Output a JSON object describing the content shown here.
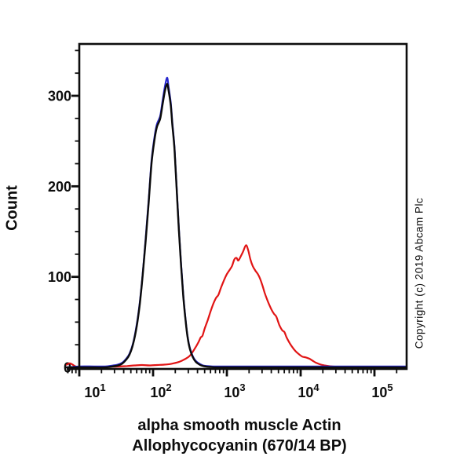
{
  "figure": {
    "ylabel": "Count",
    "xlabel_line1": "alpha smooth muscle Actin",
    "xlabel_line2": "Allophycocyanin (670/14 BP)",
    "copyright": "Copyright (c) 2019 Abcam Plc",
    "ink_color": "#0d0d0d",
    "background_color": "#ffffff"
  },
  "chart_data": {
    "type": "line",
    "subtype": "flow-cytometry-histogram-overlay",
    "title": "",
    "xlabel": "alpha smooth muscle Actin Allophycocyanin (670/14 BP)",
    "ylabel": "Count",
    "x_scale": "log10",
    "xlim_log10": [
      0.83,
      5.436
    ],
    "ylim": [
      0,
      357
    ],
    "grid": false,
    "legend": "none",
    "x_major_ticks": [
      10,
      100,
      1000,
      10000,
      100000
    ],
    "x_tick_labels": [
      {
        "base": "10",
        "exp": "1"
      },
      {
        "base": "10",
        "exp": "2"
      },
      {
        "base": "10",
        "exp": "3"
      },
      {
        "base": "10",
        "exp": "4"
      },
      {
        "base": "10",
        "exp": "5"
      }
    ],
    "x_minor_ticks_per_decade": [
      2,
      3,
      4,
      5,
      6,
      7,
      8,
      9
    ],
    "y_major_ticks": [
      0,
      100,
      200,
      300
    ],
    "y_tick_labels": [
      "0",
      "100",
      "200",
      "300"
    ],
    "y_minor_step": 25,
    "y_minor_max": 350,
    "series": [
      {
        "name": "sample-red",
        "color": "#e11414",
        "width": 2.2,
        "peak": {
          "x": 1800,
          "count": 135
        },
        "points_log10x_count": [
          [
            0.83,
            3
          ],
          [
            0.87,
            4.5
          ],
          [
            0.91,
            3
          ],
          [
            0.95,
            1
          ],
          [
            1.0,
            0.5
          ],
          [
            1.15,
            0.5
          ],
          [
            1.3,
            0.6
          ],
          [
            1.5,
            0.9
          ],
          [
            1.65,
            1.5
          ],
          [
            1.75,
            2.2
          ],
          [
            1.85,
            2.6
          ],
          [
            1.95,
            2.2
          ],
          [
            2.05,
            2.6
          ],
          [
            2.15,
            3
          ],
          [
            2.25,
            4
          ],
          [
            2.35,
            6
          ],
          [
            2.43,
            9
          ],
          [
            2.5,
            13
          ],
          [
            2.56,
            20
          ],
          [
            2.61,
            27
          ],
          [
            2.645,
            33
          ],
          [
            2.67,
            35
          ],
          [
            2.7,
            43
          ],
          [
            2.74,
            52
          ],
          [
            2.78,
            62
          ],
          [
            2.82,
            71
          ],
          [
            2.855,
            77
          ],
          [
            2.885,
            80
          ],
          [
            2.92,
            88
          ],
          [
            2.96,
            96
          ],
          [
            3.0,
            103
          ],
          [
            3.04,
            108
          ],
          [
            3.07,
            112
          ],
          [
            3.1,
            119
          ],
          [
            3.13,
            121
          ],
          [
            3.155,
            118
          ],
          [
            3.19,
            123
          ],
          [
            3.22,
            128
          ],
          [
            3.26,
            135
          ],
          [
            3.29,
            129
          ],
          [
            3.32,
            119
          ],
          [
            3.35,
            112
          ],
          [
            3.385,
            107
          ],
          [
            3.42,
            103
          ],
          [
            3.45,
            98
          ],
          [
            3.48,
            91
          ],
          [
            3.51,
            83
          ],
          [
            3.54,
            76
          ],
          [
            3.57,
            70
          ],
          [
            3.61,
            63
          ],
          [
            3.64,
            59
          ],
          [
            3.67,
            56
          ],
          [
            3.71,
            47
          ],
          [
            3.75,
            41
          ],
          [
            3.78,
            39
          ],
          [
            3.81,
            33
          ],
          [
            3.85,
            27
          ],
          [
            3.89,
            22
          ],
          [
            3.93,
            18
          ],
          [
            3.97,
            15
          ],
          [
            4.02,
            12
          ],
          [
            4.07,
            11
          ],
          [
            4.12,
            9.5
          ],
          [
            4.16,
            7.5
          ],
          [
            4.2,
            5.5
          ],
          [
            4.26,
            3.5
          ],
          [
            4.32,
            2.2
          ],
          [
            4.4,
            1.2
          ],
          [
            4.5,
            0.6
          ],
          [
            4.62,
            0.2
          ],
          [
            4.8,
            0
          ],
          [
            5.1,
            0
          ],
          [
            5.42,
            0
          ]
        ]
      },
      {
        "name": "control-blue",
        "color": "#2727cd",
        "width": 2.2,
        "peak": {
          "x": 150,
          "count": 320
        },
        "points_log10x_count": [
          [
            0.83,
            0
          ],
          [
            1.0,
            1
          ],
          [
            1.2,
            1
          ],
          [
            1.35,
            1
          ],
          [
            1.45,
            2
          ],
          [
            1.52,
            3
          ],
          [
            1.58,
            5
          ],
          [
            1.63,
            9
          ],
          [
            1.68,
            15
          ],
          [
            1.73,
            27
          ],
          [
            1.78,
            48
          ],
          [
            1.82,
            72
          ],
          [
            1.86,
            104
          ],
          [
            1.9,
            143
          ],
          [
            1.94,
            185
          ],
          [
            1.98,
            229
          ],
          [
            2.02,
            255
          ],
          [
            2.05,
            268
          ],
          [
            2.08,
            274
          ],
          [
            2.1,
            279
          ],
          [
            2.13,
            295
          ],
          [
            2.16,
            310
          ],
          [
            2.19,
            320
          ],
          [
            2.21,
            310
          ],
          [
            2.24,
            292
          ],
          [
            2.26,
            272
          ],
          [
            2.29,
            243
          ],
          [
            2.32,
            198
          ],
          [
            2.35,
            153
          ],
          [
            2.38,
            114
          ],
          [
            2.41,
            80
          ],
          [
            2.44,
            53
          ],
          [
            2.47,
            33
          ],
          [
            2.5,
            21
          ],
          [
            2.54,
            12
          ],
          [
            2.58,
            7
          ],
          [
            2.63,
            4
          ],
          [
            2.68,
            2
          ],
          [
            2.74,
            1.5
          ],
          [
            2.82,
            1
          ],
          [
            2.92,
            1
          ],
          [
            3.4,
            1
          ],
          [
            4.2,
            1
          ],
          [
            5.0,
            1
          ],
          [
            5.42,
            1
          ]
        ]
      },
      {
        "name": "control-black",
        "color": "#0b0b0b",
        "width": 2.4,
        "peak": {
          "x": 150,
          "count": 313
        },
        "points_log10x_count": [
          [
            0.83,
            0
          ],
          [
            1.0,
            0
          ],
          [
            1.2,
            0
          ],
          [
            1.35,
            0
          ],
          [
            1.45,
            1
          ],
          [
            1.52,
            2
          ],
          [
            1.58,
            4
          ],
          [
            1.63,
            8
          ],
          [
            1.68,
            14
          ],
          [
            1.73,
            26
          ],
          [
            1.78,
            46
          ],
          [
            1.82,
            70
          ],
          [
            1.86,
            102
          ],
          [
            1.9,
            140
          ],
          [
            1.94,
            182
          ],
          [
            1.98,
            226
          ],
          [
            2.02,
            252
          ],
          [
            2.05,
            265
          ],
          [
            2.08,
            271
          ],
          [
            2.1,
            276
          ],
          [
            2.13,
            291
          ],
          [
            2.16,
            305
          ],
          [
            2.19,
            313
          ],
          [
            2.21,
            306
          ],
          [
            2.24,
            289
          ],
          [
            2.26,
            269
          ],
          [
            2.29,
            241
          ],
          [
            2.32,
            196
          ],
          [
            2.35,
            151
          ],
          [
            2.38,
            112
          ],
          [
            2.41,
            78
          ],
          [
            2.44,
            52
          ],
          [
            2.47,
            32
          ],
          [
            2.5,
            20
          ],
          [
            2.54,
            11
          ],
          [
            2.58,
            6
          ],
          [
            2.63,
            3
          ],
          [
            2.68,
            1.5
          ],
          [
            2.74,
            0.7
          ],
          [
            2.82,
            0.2
          ],
          [
            2.92,
            0
          ],
          [
            3.4,
            0
          ],
          [
            4.2,
            0
          ],
          [
            5.0,
            0
          ],
          [
            5.42,
            0
          ]
        ]
      }
    ]
  }
}
